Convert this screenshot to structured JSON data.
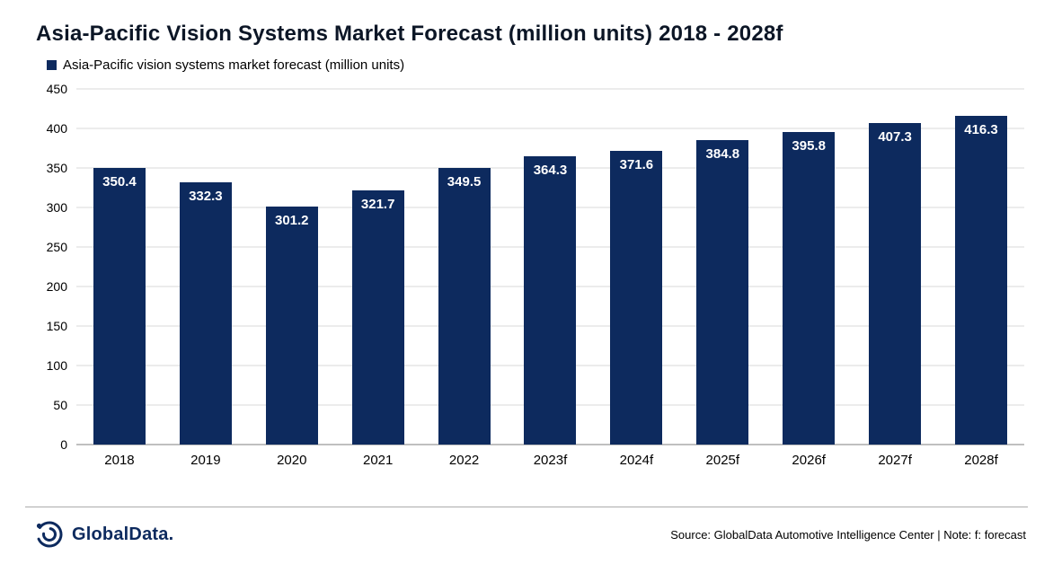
{
  "title": "Asia-Pacific Vision Systems Market Forecast (million units) 2018 - 2028f",
  "legend": {
    "label": "Asia-Pacific vision systems market forecast (million units)",
    "swatch_color": "#0d2a5e"
  },
  "chart_data": {
    "type": "bar",
    "categories": [
      "2018",
      "2019",
      "2020",
      "2021",
      "2022",
      "2023f",
      "2024f",
      "2025f",
      "2026f",
      "2027f",
      "2028f"
    ],
    "values": [
      350.4,
      332.3,
      301.2,
      321.7,
      349.5,
      364.3,
      371.6,
      384.8,
      395.8,
      407.3,
      416.3
    ],
    "title": "Asia-Pacific Vision Systems Market Forecast (million units) 2018 - 2028f",
    "xlabel": "",
    "ylabel": "",
    "ylim": [
      0,
      450
    ],
    "ytick_step": 50,
    "grid": true,
    "legend_position": "top-left",
    "bar_color": "#0d2a5e",
    "value_label_color": "#ffffff",
    "value_label_position": "inside-top"
  },
  "footer": {
    "logo_text": "GlobalData.",
    "logo_icon": "globaldata-spiral-icon",
    "source_text": "Source: GlobalData Automotive Intelligence Center | Note: f: forecast"
  }
}
